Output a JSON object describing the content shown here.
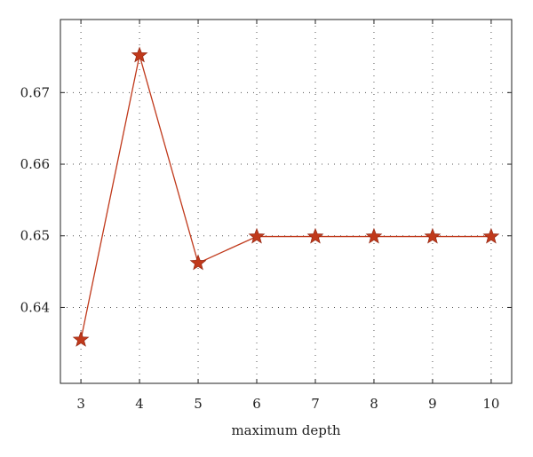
{
  "chart_data": {
    "type": "line",
    "title": "",
    "xlabel": "maximum depth",
    "ylabel": "",
    "x": [
      3,
      4,
      5,
      6,
      7,
      8,
      9,
      10
    ],
    "series": [
      {
        "name": "",
        "values": [
          0.6355,
          0.6752,
          0.6462,
          0.6499,
          0.6499,
          0.6499,
          0.6499,
          0.6499
        ],
        "color": "#c0391b",
        "marker": "star"
      }
    ],
    "x_ticks": [
      "3",
      "4",
      "5",
      "6",
      "7",
      "8",
      "9",
      "10"
    ],
    "y_ticks": [
      "0.64",
      "0.65",
      "0.66",
      "0.67"
    ],
    "y_tick_values": [
      0.64,
      0.65,
      0.66,
      0.67
    ],
    "xlim": [
      2.65,
      10.35
    ],
    "ylim": [
      0.6294,
      0.6802
    ],
    "grid": true,
    "legend": "none"
  }
}
